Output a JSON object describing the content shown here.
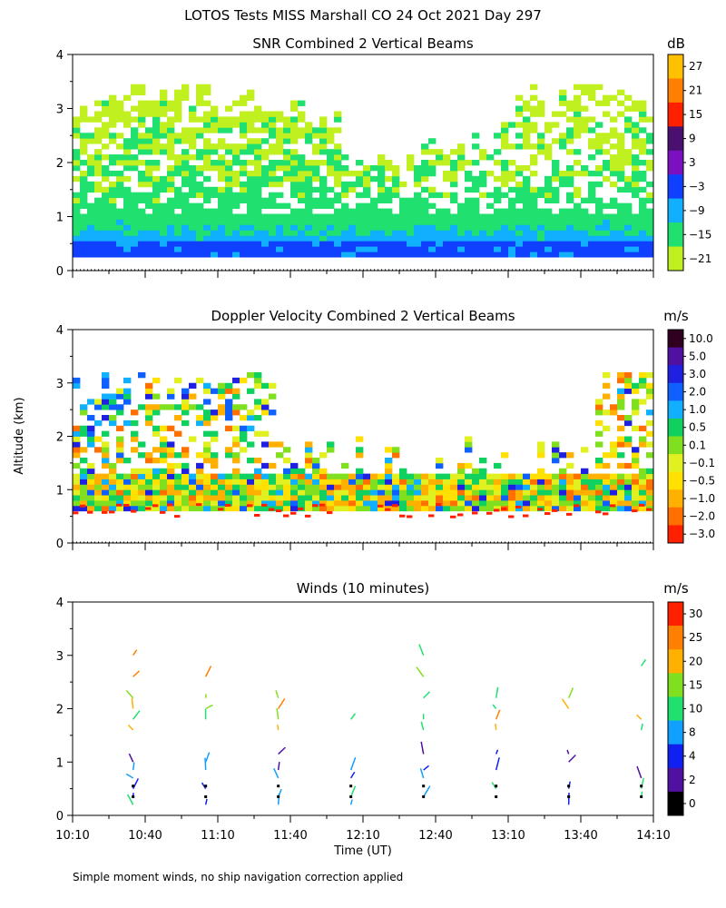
{
  "figure": {
    "title": "LOTOS Tests MISS Marshall CO  24 Oct 2021 Day 297",
    "footnote": "Simple moment winds, no ship navigation correction applied",
    "ylabel": "Altitude (km)",
    "xlabel": "Time (UT)",
    "x_tick_labels": [
      "10:10",
      "10:40",
      "11:10",
      "11:40",
      "12:10",
      "12:40",
      "13:10",
      "13:40",
      "14:10"
    ]
  },
  "chart_data": [
    {
      "type": "heatmap",
      "title": "SNR Combined 2 Vertical Beams",
      "ylabel": "Altitude (km)",
      "xlim": [
        "10:10",
        "14:10"
      ],
      "ylim": [
        0,
        4
      ],
      "y_ticks": [
        "0",
        "1",
        "2",
        "3",
        "4"
      ],
      "colorbar": {
        "unit": "dB",
        "labels": [
          "27",
          "21",
          "15",
          "9",
          "3",
          "−3",
          "−9",
          "−15",
          "−21"
        ],
        "colors": [
          "#ffc000",
          "#ff8000",
          "#ff2000",
          "#4a1070",
          "#7a10c0",
          "#1040ff",
          "#10b0ff",
          "#20e070",
          "#c0f020"
        ]
      },
      "profile_summary": [
        {
          "altitude_km": 0.3,
          "level_db": -6
        },
        {
          "altitude_km": 0.5,
          "level_db": -9
        },
        {
          "altitude_km": 0.8,
          "level_db": -14
        },
        {
          "altitude_km": 1.5,
          "level_db": -17
        },
        {
          "altitude_km": 2.5,
          "level_db": -19
        },
        {
          "altitude_km": 3.5,
          "level_db": -21
        }
      ]
    },
    {
      "type": "heatmap",
      "title": "Doppler Velocity Combined 2 Vertical Beams",
      "ylabel": "Altitude (km)",
      "xlim": [
        "10:10",
        "14:10"
      ],
      "ylim": [
        0,
        4
      ],
      "y_ticks": [
        "0",
        "1",
        "2",
        "3",
        "4"
      ],
      "colorbar": {
        "unit": "m/s",
        "labels": [
          "10.0",
          "5.0",
          "3.0",
          "2.0",
          "1.0",
          "0.5",
          "0.1",
          "−0.1",
          "−0.5",
          "−1.0",
          "−2.0",
          "−3.0"
        ],
        "colors": [
          "#300020",
          "#5010a0",
          "#2020e0",
          "#1060ff",
          "#10b0ff",
          "#10d060",
          "#80e020",
          "#e0f020",
          "#ffe000",
          "#ffb000",
          "#ff7000",
          "#ff2000"
        ]
      }
    },
    {
      "type": "scatter",
      "title": "Winds (10 minutes)",
      "ylabel": "Altitude (km)",
      "xlabel": "Time (UT)",
      "xlim": [
        "10:10",
        "14:10"
      ],
      "ylim": [
        0,
        4
      ],
      "y_ticks": [
        "0",
        "1",
        "2",
        "3",
        "4"
      ],
      "colorbar": {
        "unit": "m/s",
        "labels": [
          "30",
          "25",
          "20",
          "15",
          "10",
          "8",
          "4",
          "2",
          "0"
        ],
        "colors": [
          "#ff2000",
          "#ff8000",
          "#ffb000",
          "#80e020",
          "#20e070",
          "#10a0ff",
          "#1020f0",
          "#5010a0",
          "#000000"
        ]
      },
      "profile_times": [
        "10:35",
        "11:05",
        "11:35",
        "12:05",
        "12:35",
        "13:05",
        "13:35",
        "14:05"
      ]
    }
  ]
}
